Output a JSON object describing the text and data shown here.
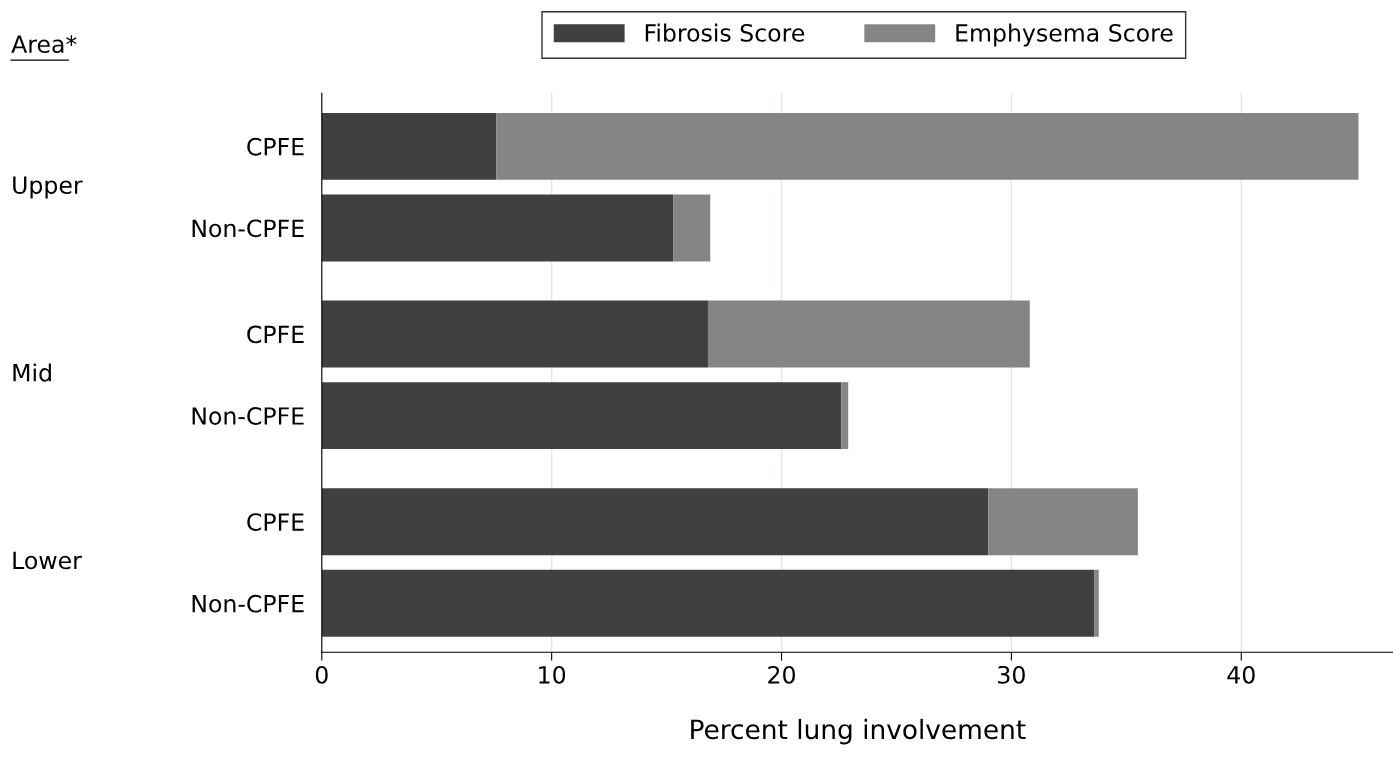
{
  "chart_data": {
    "type": "bar",
    "orientation": "horizontal",
    "stacked": true,
    "categories": [
      "CPFE",
      "Non-CPFE",
      "CPFE",
      "Non-CPFE",
      "CPFE",
      "Non-CPFE"
    ],
    "series": [
      {
        "name": "Fibrosis Score",
        "color": "#404040",
        "values": [
          7.6,
          15.3,
          16.8,
          22.6,
          29.0,
          33.6
        ]
      },
      {
        "name": "Emphysema Score",
        "color": "#858585",
        "values": [
          37.5,
          1.6,
          14.0,
          0.3,
          6.5,
          0.2
        ]
      }
    ],
    "xlabel": "Percent lung involvement",
    "xlim": [
      0,
      46.6
    ],
    "xticks": [
      0,
      10,
      20,
      30,
      40
    ],
    "grid": "x",
    "legend": "top",
    "annotations": [
      "Area*",
      "Upper",
      "Mid",
      "Lower"
    ]
  }
}
